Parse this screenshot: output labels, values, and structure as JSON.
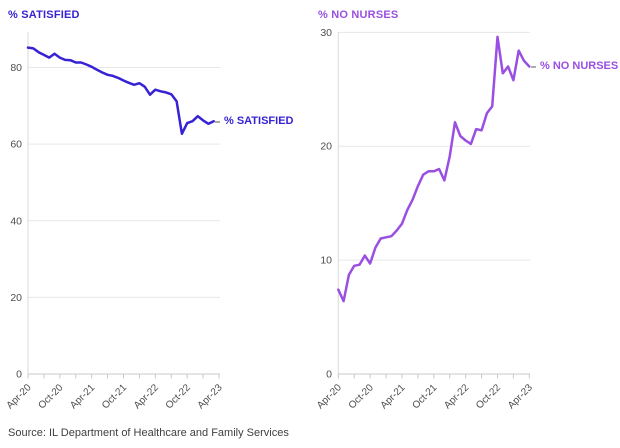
{
  "source": "Source: IL Department of Healthcare and Family Services",
  "chart_data": [
    {
      "type": "line",
      "title": "% SATISFIED",
      "series_label": "% SATISFIED",
      "color": "#3722d4",
      "xlabel": "",
      "ylabel": "",
      "ylim": [
        0,
        89
      ],
      "y_ticks": [
        0,
        20,
        40,
        60,
        80
      ],
      "x_tick_labels": [
        "Apr-20",
        "Oct-20",
        "Apr-21",
        "Oct-21",
        "Apr-22",
        "Oct-22",
        "Apr-23"
      ],
      "grid": "horizontal",
      "legend_position": "end-of-line",
      "x": [
        "Apr-20",
        "May-20",
        "Jun-20",
        "Jul-20",
        "Aug-20",
        "Sep-20",
        "Oct-20",
        "Nov-20",
        "Dec-20",
        "Jan-21",
        "Feb-21",
        "Mar-21",
        "Apr-21",
        "May-21",
        "Jun-21",
        "Jul-21",
        "Aug-21",
        "Sep-21",
        "Oct-21",
        "Nov-21",
        "Dec-21",
        "Jan-22",
        "Feb-22",
        "Mar-22",
        "Apr-22",
        "May-22",
        "Jun-22",
        "Jul-22",
        "Aug-22",
        "Sep-22",
        "Oct-22",
        "Nov-22",
        "Dec-22",
        "Jan-23",
        "Feb-23",
        "Mar-23"
      ],
      "values": [
        85.2,
        85.0,
        84.0,
        83.3,
        82.6,
        83.6,
        82.6,
        82.0,
        81.9,
        81.3,
        81.3,
        80.8,
        80.2,
        79.4,
        78.7,
        78.1,
        77.8,
        77.3,
        76.6,
        76.0,
        75.5,
        75.9,
        75.0,
        72.9,
        74.2,
        73.8,
        73.5,
        73.0,
        71.2,
        62.7,
        65.5,
        66.0,
        67.3,
        66.2,
        65.3,
        66.0
      ]
    },
    {
      "type": "line",
      "title": "% NO NURSES",
      "series_label": "% NO NURSES",
      "color": "#9a4fe3",
      "xlabel": "",
      "ylabel": "",
      "ylim": [
        0,
        30
      ],
      "y_ticks": [
        0,
        10,
        20,
        30
      ],
      "x_tick_labels": [
        "Apr-20",
        "Oct-20",
        "Apr-21",
        "Oct-21",
        "Apr-22",
        "Oct-22",
        "Apr-23"
      ],
      "grid": "horizontal",
      "legend_position": "end-of-line",
      "x": [
        "Apr-20",
        "May-20",
        "Jun-20",
        "Jul-20",
        "Aug-20",
        "Sep-20",
        "Oct-20",
        "Nov-20",
        "Dec-20",
        "Jan-21",
        "Feb-21",
        "Mar-21",
        "Apr-21",
        "May-21",
        "Jun-21",
        "Jul-21",
        "Aug-21",
        "Sep-21",
        "Oct-21",
        "Nov-21",
        "Dec-21",
        "Jan-22",
        "Feb-22",
        "Mar-22",
        "Apr-22",
        "May-22",
        "Jun-22",
        "Jul-22",
        "Aug-22",
        "Sep-22",
        "Oct-22",
        "Nov-22",
        "Dec-22",
        "Jan-23",
        "Feb-23",
        "Mar-23",
        "Apr-23"
      ],
      "values": [
        7.4,
        6.4,
        8.7,
        9.5,
        9.6,
        10.4,
        9.7,
        11.1,
        11.9,
        12.0,
        12.1,
        12.6,
        13.2,
        14.4,
        15.3,
        16.5,
        17.5,
        17.8,
        17.8,
        18.0,
        17.0,
        19.1,
        22.1,
        20.9,
        20.5,
        20.2,
        21.5,
        21.4,
        22.9,
        23.5,
        29.6,
        26.4,
        27.0,
        25.8,
        28.4,
        27.5,
        27.0
      ]
    }
  ]
}
